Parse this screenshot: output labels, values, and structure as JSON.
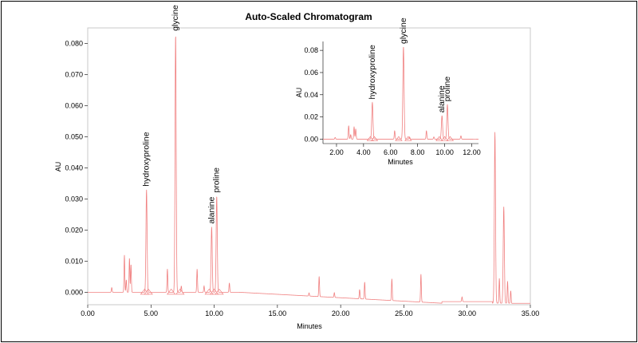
{
  "chart_data": [
    {
      "type": "line",
      "title": "Auto-Scaled Chromatogram",
      "xlabel": "Minutes",
      "ylabel": "AU",
      "xlim": [
        0,
        35
      ],
      "ylim": [
        -0.004,
        0.085
      ],
      "xticks": [
        "0.00",
        "5.00",
        "10.00",
        "15.00",
        "20.00",
        "25.00",
        "30.00",
        "35.00"
      ],
      "xtick_values": [
        0,
        5,
        10,
        15,
        20,
        25,
        30,
        35
      ],
      "yticks": [
        "0.000",
        "0.010",
        "0.020",
        "0.030",
        "0.040",
        "0.050",
        "0.060",
        "0.070",
        "0.080"
      ],
      "ytick_values": [
        0,
        0.01,
        0.02,
        0.03,
        0.04,
        0.05,
        0.06,
        0.07,
        0.08
      ],
      "line_color": "#f08080",
      "peaks": [
        {
          "t": 1.9,
          "h": 0.0015
        },
        {
          "t": 2.9,
          "h": 0.012
        },
        {
          "t": 3.05,
          "h": 0.004
        },
        {
          "t": 3.3,
          "h": 0.011
        },
        {
          "t": 3.42,
          "h": 0.009
        },
        {
          "t": 4.65,
          "h": 0.033
        },
        {
          "t": 6.3,
          "h": 0.0075
        },
        {
          "t": 6.95,
          "h": 0.083
        },
        {
          "t": 7.4,
          "h": 0.002
        },
        {
          "t": 8.65,
          "h": 0.0075
        },
        {
          "t": 9.2,
          "h": 0.002
        },
        {
          "t": 9.8,
          "h": 0.021
        },
        {
          "t": 10.2,
          "h": 0.031
        },
        {
          "t": 11.2,
          "h": 0.003
        },
        {
          "t": 17.5,
          "h": 0.001
        },
        {
          "t": 18.3,
          "h": 0.0065
        },
        {
          "t": 19.5,
          "h": 0.0015
        },
        {
          "t": 21.5,
          "h": 0.003
        },
        {
          "t": 21.9,
          "h": 0.0055
        },
        {
          "t": 24.05,
          "h": 0.007
        },
        {
          "t": 26.35,
          "h": 0.009
        },
        {
          "t": 29.6,
          "h": 0.0015
        },
        {
          "t": 32.2,
          "h": 0.055
        },
        {
          "t": 32.55,
          "h": 0.008
        },
        {
          "t": 32.9,
          "h": 0.031
        },
        {
          "t": 33.2,
          "h": 0.007
        },
        {
          "t": 33.45,
          "h": 0.004
        }
      ],
      "annotations": [
        {
          "label": "hydroxyproline",
          "t": 4.65,
          "h": 0.033
        },
        {
          "label": "glycine",
          "t": 6.95,
          "h": 0.083
        },
        {
          "label": "alanine",
          "t": 9.8,
          "h": 0.021
        },
        {
          "label": "proline",
          "t": 10.2,
          "h": 0.031
        }
      ],
      "baseline_markers": [
        4.5,
        4.8,
        6.6,
        7.3,
        9.6,
        10.0,
        10.4
      ]
    },
    {
      "type": "line",
      "title": "",
      "xlabel": "Minutes",
      "ylabel": "AU",
      "xlim": [
        1,
        12.5
      ],
      "ylim": [
        -0.004,
        0.088
      ],
      "xticks": [
        "2.00",
        "4.00",
        "6.00",
        "8.00",
        "10.00",
        "12.00"
      ],
      "xtick_values": [
        2,
        4,
        6,
        8,
        10,
        12
      ],
      "yticks": [
        "0.00",
        "0.02",
        "0.04",
        "0.06",
        "0.08"
      ],
      "ytick_values": [
        0,
        0.02,
        0.04,
        0.06,
        0.08
      ],
      "line_color": "#f08080",
      "annotations": [
        {
          "label": "hydroxyproline",
          "t": 4.65,
          "h": 0.033
        },
        {
          "label": "glycine",
          "t": 6.95,
          "h": 0.083
        },
        {
          "label": "alanine",
          "t": 9.8,
          "h": 0.021
        },
        {
          "label": "proline",
          "t": 10.2,
          "h": 0.031
        }
      ]
    }
  ]
}
